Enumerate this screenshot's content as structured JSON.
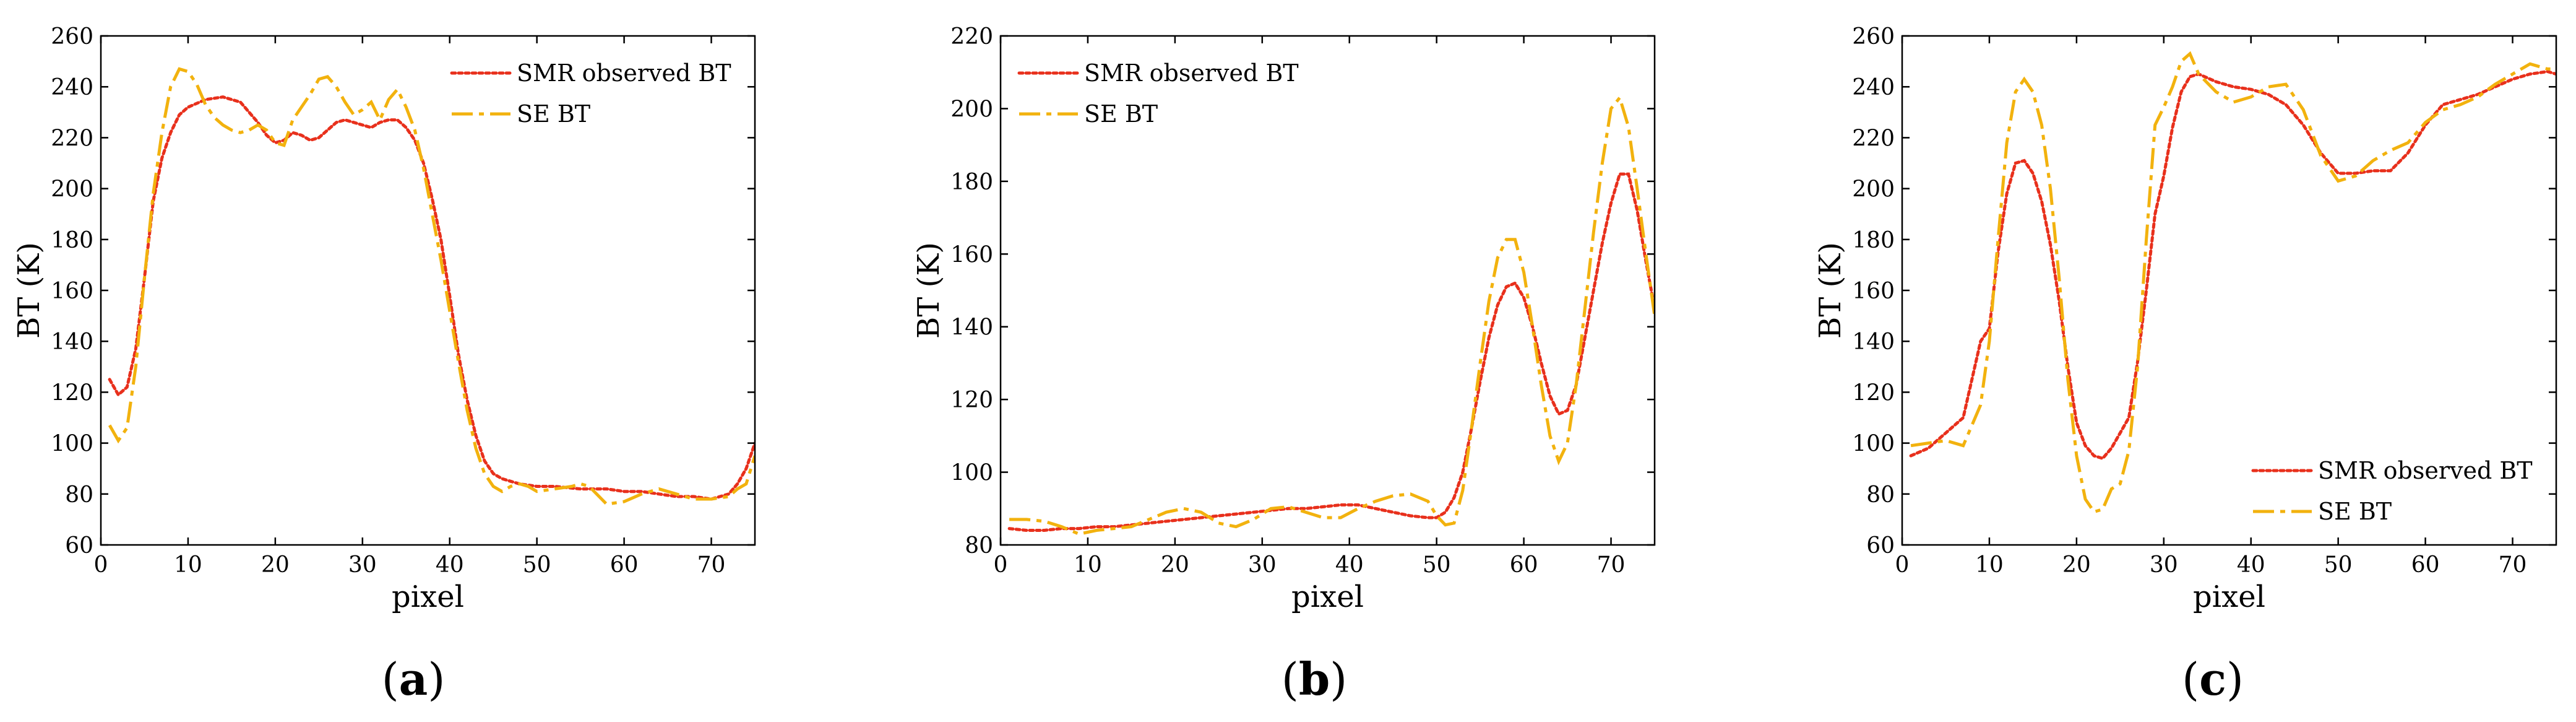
{
  "figure": {
    "panels": [
      "a",
      "b",
      "c"
    ]
  },
  "colors": {
    "smr": "#e8301c",
    "se": "#f2b20e",
    "axis": "#000000"
  },
  "chart_data": [
    {
      "id": "a",
      "caption": "(a)",
      "caption_letter": "a",
      "type": "line",
      "title": "",
      "xlabel": "pixel",
      "ylabel": "BT (K)",
      "xlim": [
        0,
        75
      ],
      "ylim": [
        60,
        260
      ],
      "xticks": [
        0,
        10,
        20,
        30,
        40,
        50,
        60,
        70
      ],
      "yticks": [
        60,
        80,
        100,
        120,
        140,
        160,
        180,
        200,
        220,
        240,
        260
      ],
      "grid": false,
      "legend": "top-right",
      "series": [
        {
          "name": "SMR observed BT",
          "style": "dotted",
          "color": "#e8301c",
          "x": [
            1,
            2,
            3,
            4,
            5,
            6,
            7,
            8,
            9,
            10,
            12,
            14,
            16,
            18,
            19,
            20,
            21,
            22,
            23,
            24,
            25,
            26,
            27,
            28,
            29,
            30,
            31,
            32,
            33,
            34,
            35,
            36,
            37,
            38,
            39,
            40,
            41,
            42,
            43,
            44,
            45,
            46,
            47,
            48,
            50,
            52,
            55,
            58,
            60,
            62,
            64,
            66,
            68,
            70,
            72,
            73,
            74,
            75
          ],
          "y": [
            125,
            119,
            122,
            137,
            165,
            195,
            212,
            222,
            229,
            232,
            235,
            236,
            234,
            226,
            221,
            218,
            219,
            222,
            221,
            219,
            220,
            223,
            226,
            227,
            226,
            225,
            224,
            226,
            227,
            227,
            224,
            219,
            210,
            196,
            180,
            158,
            135,
            117,
            103,
            93,
            88,
            86,
            85,
            84,
            83,
            83,
            82,
            82,
            81,
            81,
            80,
            79,
            79,
            78,
            80,
            84,
            90,
            100
          ]
        },
        {
          "name": "SE BT",
          "style": "dashdot",
          "color": "#f2b20e",
          "x": [
            1,
            2,
            3,
            4,
            5,
            6,
            7,
            8,
            9,
            10,
            11,
            12,
            13,
            14,
            15,
            16,
            17,
            18,
            19,
            20,
            21,
            22,
            23,
            24,
            25,
            26,
            27,
            28,
            29,
            30,
            31,
            32,
            33,
            34,
            35,
            36,
            37,
            38,
            39,
            40,
            41,
            42,
            43,
            44,
            45,
            46,
            47,
            48,
            49,
            50,
            52,
            54,
            55,
            56,
            58,
            60,
            62,
            64,
            66,
            68,
            70,
            72,
            73,
            74,
            75
          ],
          "y": [
            107,
            101,
            106,
            130,
            165,
            198,
            222,
            240,
            247,
            246,
            241,
            233,
            228,
            225,
            223,
            222,
            223,
            225,
            223,
            218,
            217,
            227,
            232,
            237,
            243,
            244,
            240,
            234,
            229,
            231,
            234,
            227,
            235,
            239,
            232,
            223,
            208,
            190,
            172,
            152,
            132,
            113,
            98,
            88,
            83,
            81,
            83,
            84,
            83,
            81,
            82,
            83,
            84,
            83,
            76,
            77,
            80,
            82,
            80,
            78,
            78,
            79,
            82,
            84,
            95
          ]
        }
      ]
    },
    {
      "id": "b",
      "caption": "(b)",
      "caption_letter": "b",
      "type": "line",
      "title": "",
      "xlabel": "pixel",
      "ylabel": "BT (K)",
      "xlim": [
        0,
        75
      ],
      "ylim": [
        80,
        220
      ],
      "xticks": [
        0,
        10,
        20,
        30,
        40,
        50,
        60,
        70
      ],
      "yticks": [
        80,
        100,
        120,
        140,
        160,
        180,
        200,
        220
      ],
      "grid": false,
      "legend": "top-left",
      "series": [
        {
          "name": "SMR observed BT",
          "style": "dotted",
          "color": "#e8301c",
          "x": [
            1,
            3,
            5,
            7,
            9,
            11,
            13,
            15,
            17,
            19,
            21,
            23,
            25,
            27,
            29,
            31,
            33,
            35,
            37,
            39,
            41,
            43,
            45,
            47,
            49,
            50,
            51,
            52,
            53,
            54,
            55,
            56,
            57,
            58,
            59,
            60,
            61,
            62,
            63,
            64,
            65,
            66,
            67,
            68,
            69,
            70,
            71,
            72,
            73,
            74,
            75
          ],
          "y": [
            84.5,
            84,
            84,
            84.5,
            84.5,
            85,
            85,
            85.5,
            86,
            86.5,
            87,
            87.5,
            88,
            88.5,
            89,
            89.5,
            90,
            90,
            90.5,
            91,
            91,
            90,
            89,
            88,
            87.5,
            87.5,
            89,
            93,
            100,
            112,
            125,
            137,
            146,
            151,
            152,
            148,
            140,
            130,
            121,
            116,
            117,
            124,
            137,
            150,
            163,
            174,
            182,
            182,
            172,
            158,
            145
          ]
        },
        {
          "name": "SE BT",
          "style": "dashdot",
          "color": "#f2b20e",
          "x": [
            1,
            3,
            5,
            7,
            9,
            11,
            13,
            15,
            17,
            19,
            21,
            23,
            25,
            27,
            29,
            31,
            33,
            35,
            37,
            39,
            41,
            43,
            45,
            47,
            49,
            50,
            51,
            52,
            53,
            54,
            55,
            56,
            57,
            58,
            59,
            60,
            61,
            62,
            63,
            64,
            65,
            66,
            67,
            68,
            69,
            70,
            71,
            72,
            73,
            74,
            75
          ],
          "y": [
            87,
            87,
            86.5,
            85,
            83,
            84,
            84.5,
            85,
            87,
            89,
            90,
            89,
            86,
            85,
            87,
            90,
            90.5,
            89,
            87.5,
            87.5,
            90,
            92,
            93.5,
            94,
            92,
            88,
            85.5,
            86,
            95,
            112,
            130,
            147,
            159,
            164,
            164,
            155,
            140,
            124,
            110,
            103,
            108,
            124,
            145,
            166,
            185,
            200,
            203,
            195,
            178,
            160,
            143
          ]
        }
      ]
    },
    {
      "id": "c",
      "caption": "(c)",
      "caption_letter": "c",
      "type": "line",
      "title": "",
      "xlabel": "pixel",
      "ylabel": "BT (K)",
      "xlim": [
        0,
        75
      ],
      "ylim": [
        60,
        260
      ],
      "xticks": [
        0,
        10,
        20,
        30,
        40,
        50,
        60,
        70
      ],
      "yticks": [
        60,
        80,
        100,
        120,
        140,
        160,
        180,
        200,
        220,
        240,
        260
      ],
      "grid": false,
      "legend": "bottom-right",
      "series": [
        {
          "name": "SMR observed BT",
          "style": "dotted",
          "color": "#e8301c",
          "x": [
            1,
            3,
            5,
            7,
            9,
            10,
            11,
            12,
            13,
            14,
            15,
            16,
            17,
            18,
            19,
            20,
            21,
            22,
            23,
            24,
            25,
            26,
            27,
            28,
            29,
            30,
            31,
            32,
            33,
            34,
            36,
            38,
            40,
            42,
            44,
            46,
            48,
            50,
            52,
            54,
            56,
            58,
            60,
            62,
            64,
            66,
            68,
            70,
            72,
            74,
            75
          ],
          "y": [
            95,
            98,
            104,
            110,
            140,
            145,
            175,
            198,
            210,
            211,
            206,
            195,
            178,
            156,
            130,
            108,
            99,
            95,
            94,
            98,
            104,
            110,
            132,
            160,
            190,
            205,
            224,
            238,
            244,
            245,
            242,
            240,
            239,
            237,
            233,
            225,
            214,
            206,
            206,
            207,
            207,
            214,
            225,
            233,
            235,
            237,
            240,
            243,
            245,
            246,
            245
          ]
        },
        {
          "name": "SE BT",
          "style": "dashdot",
          "color": "#f2b20e",
          "x": [
            1,
            3,
            5,
            7,
            9,
            10,
            11,
            12,
            13,
            14,
            15,
            16,
            17,
            18,
            19,
            20,
            21,
            22,
            23,
            24,
            25,
            26,
            27,
            28,
            29,
            30,
            31,
            32,
            33,
            34,
            36,
            38,
            40,
            42,
            44,
            46,
            48,
            50,
            52,
            54,
            56,
            58,
            60,
            62,
            64,
            66,
            68,
            70,
            72,
            74,
            75
          ],
          "y": [
            99,
            100,
            101,
            99,
            115,
            140,
            180,
            218,
            238,
            243,
            238,
            225,
            200,
            165,
            125,
            95,
            78,
            73,
            74,
            82,
            84,
            97,
            130,
            180,
            225,
            232,
            240,
            250,
            253,
            245,
            238,
            234,
            236,
            240,
            241,
            231,
            213,
            203,
            205,
            211,
            215,
            218,
            226,
            231,
            233,
            236,
            241,
            245,
            249,
            247,
            247
          ]
        }
      ]
    }
  ]
}
